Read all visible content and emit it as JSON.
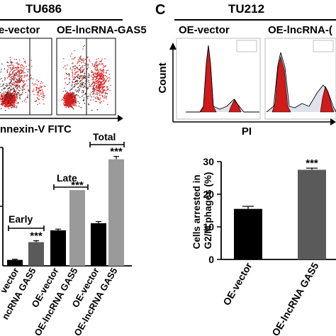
{
  "panel_b_top": {
    "title": "TU686",
    "plot_labels": [
      "e-vector",
      "OE-lncRNA-GAS5"
    ],
    "xlabel": "nnexin-V FITC"
  },
  "panel_c_top": {
    "letter": "C",
    "title": "TU212",
    "plot_labels": [
      "OE-vector",
      "OE-lncRNA-("
    ],
    "ylabel": "Count",
    "xlabel": "PI"
  },
  "colors": {
    "dot_red": "#d81e1e",
    "peak_red": "#d11a1a",
    "gray_bar": "#9a9a9a",
    "dark_bar": "#5a5a5a",
    "black": "#000000"
  },
  "chart_data": [
    {
      "type": "bar",
      "title": "",
      "categories": [
        "vector",
        "ncRNA GAS5",
        "OE-vector",
        "OE-lncRNA GAS5",
        "OE-vector",
        "OE-lncRNA GAS5"
      ],
      "values": [
        2.5,
        10,
        15,
        32,
        18,
        45
      ],
      "bar_colors": [
        "#000000",
        "#5a5a5a",
        "#000000",
        "#9a9a9a",
        "#000000",
        "#9a9a9a"
      ],
      "error": [
        0.3,
        0.6,
        0.5,
        0,
        0.7,
        1.2
      ],
      "groups": [
        "Early",
        "Late",
        "Total"
      ],
      "significance": [
        "***",
        "***",
        "***"
      ],
      "ylim": [
        0,
        50
      ],
      "ylabel": "",
      "xlabel": ""
    },
    {
      "type": "bar",
      "title": "",
      "categories": [
        "OE-vector",
        "OE-lncRNA GAS5"
      ],
      "values": [
        15.5,
        27.5
      ],
      "error": [
        0.8,
        0.5
      ],
      "bar_colors": [
        "#000000",
        "#5a5a5a"
      ],
      "significance": [
        "***"
      ],
      "yticks": [
        0,
        10,
        20,
        30
      ],
      "ylim": [
        0,
        30
      ],
      "ylabel": "Cells arrested in G2/M phages (%)",
      "xlabel": ""
    }
  ]
}
